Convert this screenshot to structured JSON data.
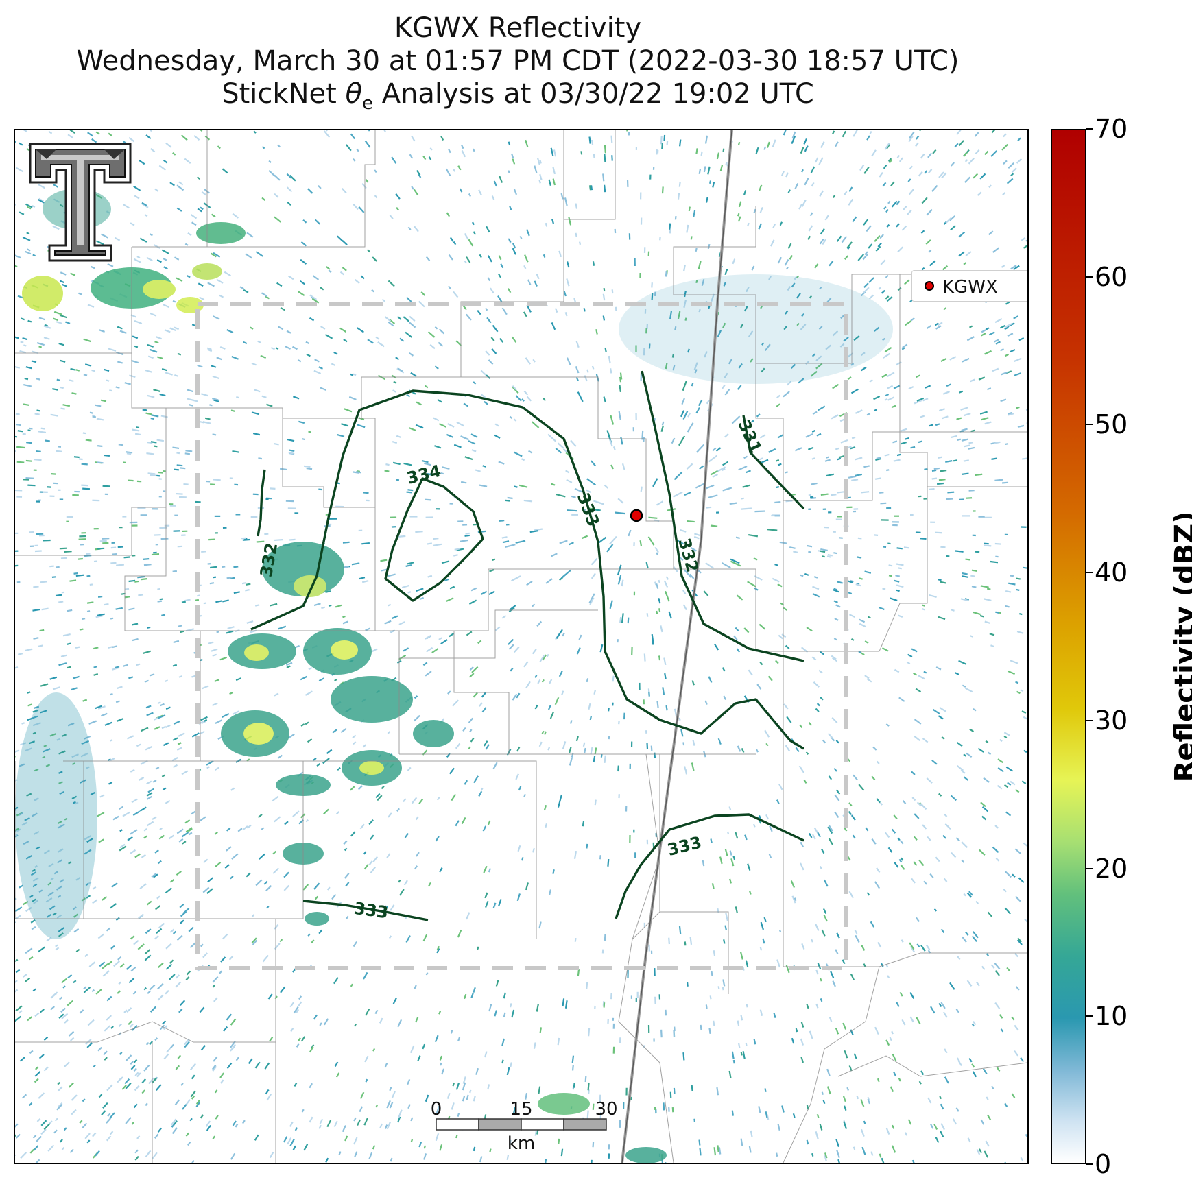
{
  "title": {
    "line1": "KGWX Reflectivity",
    "line2": "Wednesday, March 30 at 01:57 PM CDT (2022-03-30 18:57 UTC)",
    "line3_prefix": "StickNet ",
    "line3_symbol": "θ",
    "line3_sub": "e",
    "line3_suffix": " Analysis at 03/30/22 19:02 UTC"
  },
  "legend": {
    "label": "KGWX",
    "marker_color": "#e00000"
  },
  "colorbar": {
    "label": "Reflectivity (dBZ)",
    "ticks": [
      "0",
      "10",
      "20",
      "30",
      "40",
      "50",
      "60",
      "70"
    ],
    "min": 0,
    "max": 70
  },
  "scale_bar": {
    "labels": [
      "0",
      "15",
      "30"
    ],
    "unit": "km"
  },
  "contours": {
    "color": "#0b4420",
    "labels": [
      "334",
      "333",
      "333",
      "333",
      "332",
      "332",
      "331"
    ]
  },
  "logo": {
    "name": "texas-tech-double-t"
  }
}
